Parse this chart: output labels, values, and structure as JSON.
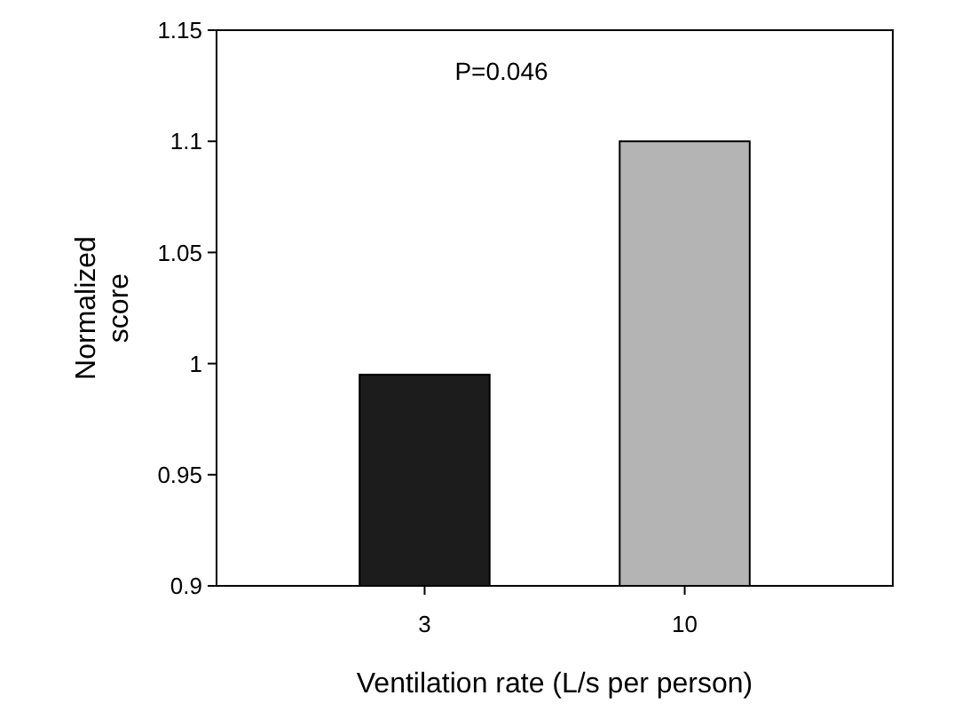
{
  "chart_data": {
    "type": "bar",
    "xlabel": "Ventilation rate (L/s per person)",
    "ylabel": "Normalized score",
    "categories": [
      "3",
      "10"
    ],
    "values": [
      0.995,
      1.1
    ],
    "colors": [
      "#1c1c1c",
      "#b4b4b4"
    ],
    "ylim": [
      0.9,
      1.15
    ],
    "yticks": [
      0.9,
      0.95,
      1,
      1.05,
      1.1,
      1.15
    ],
    "annotations": [
      "P=0.046"
    ],
    "grid": false
  }
}
